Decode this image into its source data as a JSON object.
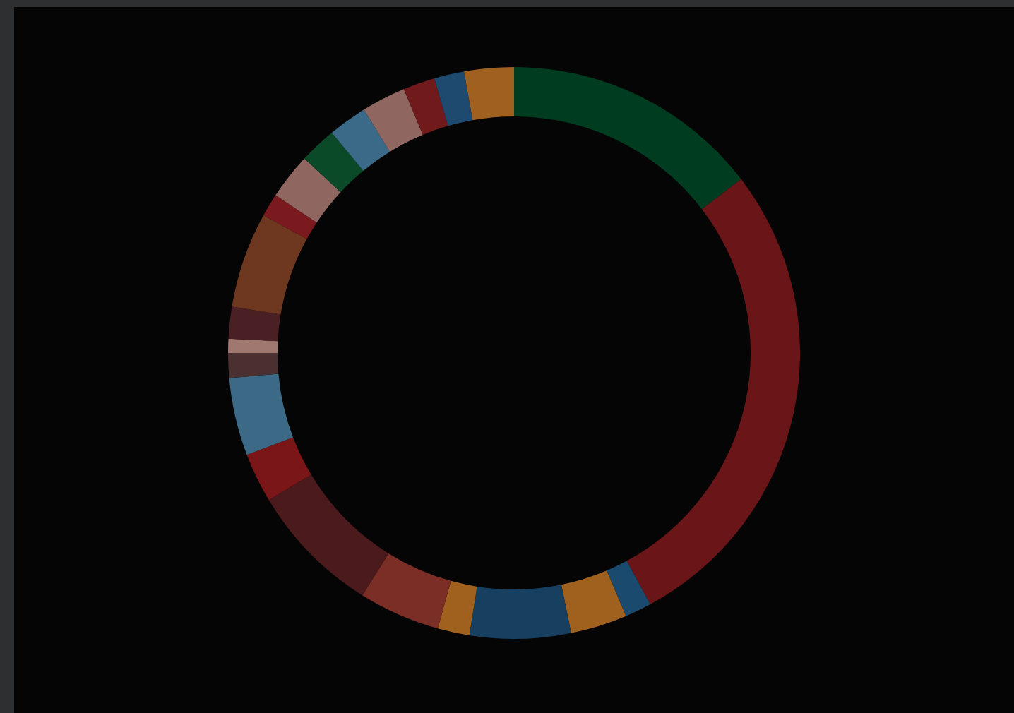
{
  "chart_data": {
    "type": "donut",
    "categories": [
      null,
      null,
      null,
      null,
      null,
      null,
      null,
      null,
      null,
      null,
      null,
      null,
      null,
      null,
      null,
      null,
      null,
      null,
      null,
      null,
      null,
      null
    ],
    "values": [
      14.6,
      27.5,
      1.5,
      3.2,
      5.7,
      1.8,
      4.6,
      7.5,
      2.8,
      4.4,
      1.4,
      0.8,
      1.8,
      5.4,
      1.3,
      2.6,
      2.1,
      2.2,
      2.5,
      1.8,
      1.7,
      2.8
    ],
    "colors": [
      "#003d20",
      "#6a1518",
      "#1a4a6e",
      "#a0601e",
      "#173f5f",
      "#a0601e",
      "#7a2e25",
      "#4a1a1c",
      "#7a1618",
      "#3c6a86",
      "#4a3030",
      "#a07870",
      "#4a2024",
      "#6e3820",
      "#7a1a1e",
      "#906660",
      "#0a4a28",
      "#3a6a88",
      "#906660",
      "#701a1c",
      "#1e4a70",
      "#a06020"
    ]
  }
}
